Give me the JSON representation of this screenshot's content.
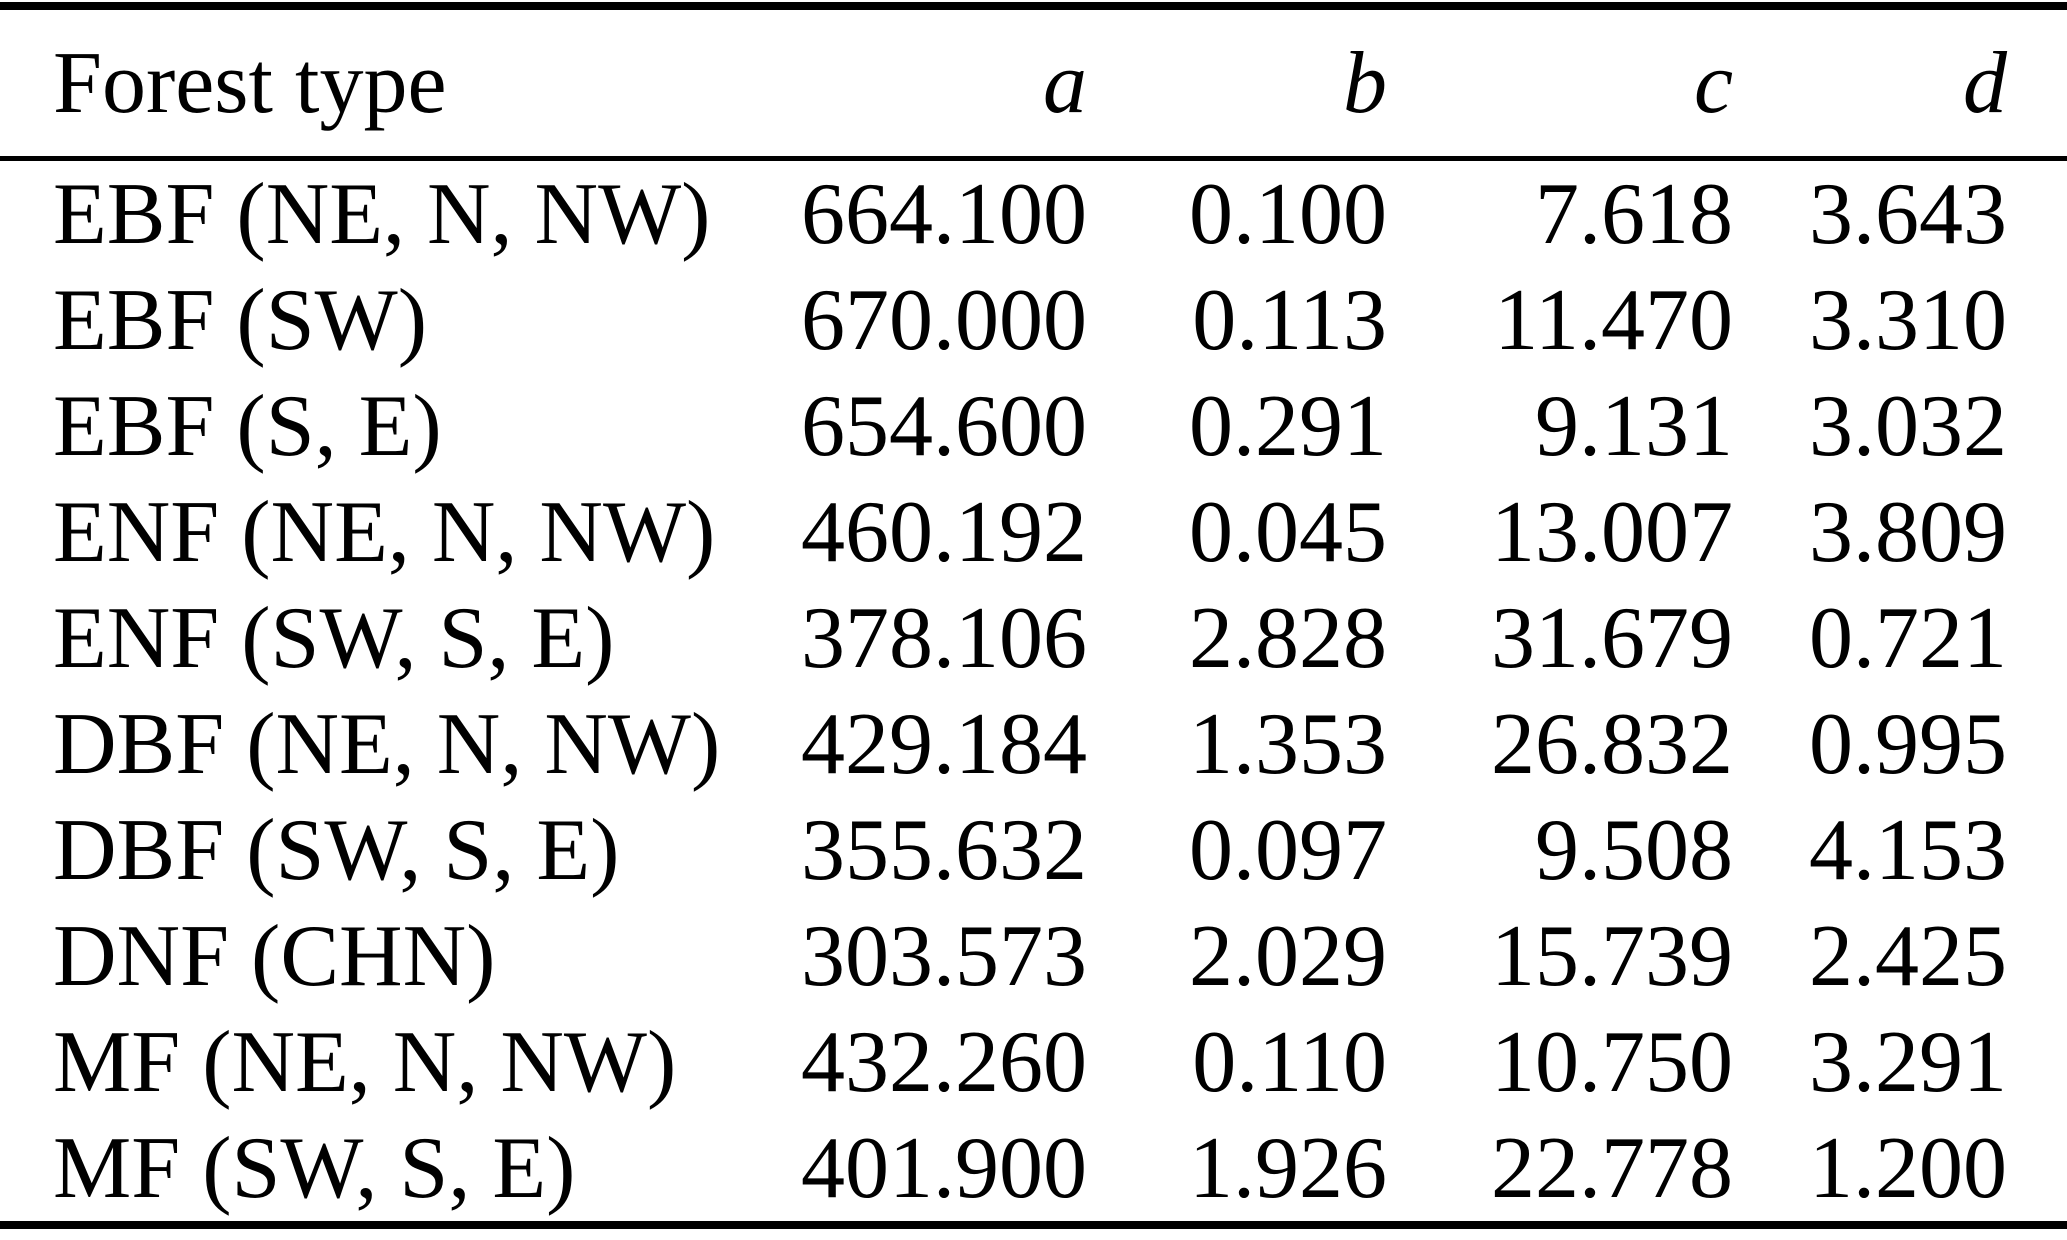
{
  "table": {
    "columns": {
      "forest_type": "Forest type",
      "a": "a",
      "b": "b",
      "c": "c",
      "d": "d"
    },
    "rows": [
      {
        "forest_type": "EBF (NE, N, NW)",
        "a": "664.100",
        "b": "0.100",
        "c": "7.618",
        "d": "3.643"
      },
      {
        "forest_type": "EBF (SW)",
        "a": "670.000",
        "b": "0.113",
        "c": "11.470",
        "d": "3.310"
      },
      {
        "forest_type": "EBF (S, E)",
        "a": "654.600",
        "b": "0.291",
        "c": "9.131",
        "d": "3.032"
      },
      {
        "forest_type": "ENF (NE, N, NW)",
        "a": "460.192",
        "b": "0.045",
        "c": "13.007",
        "d": "3.809"
      },
      {
        "forest_type": "ENF (SW, S, E)",
        "a": "378.106",
        "b": "2.828",
        "c": "31.679",
        "d": "0.721"
      },
      {
        "forest_type": "DBF (NE, N, NW)",
        "a": "429.184",
        "b": "1.353",
        "c": "26.832",
        "d": "0.995"
      },
      {
        "forest_type": "DBF (SW, S, E)",
        "a": "355.632",
        "b": "0.097",
        "c": "9.508",
        "d": "4.153"
      },
      {
        "forest_type": "DNF (CHN)",
        "a": "303.573",
        "b": "2.029",
        "c": "15.739",
        "d": "2.425"
      },
      {
        "forest_type": "MF (NE, N, NW)",
        "a": "432.260",
        "b": "0.110",
        "c": "10.750",
        "d": "3.291"
      },
      {
        "forest_type": "MF (SW, S, E)",
        "a": "401.900",
        "b": "1.926",
        "c": "22.778",
        "d": "1.200"
      }
    ],
    "colors": {
      "text": "#000000",
      "background": "#ffffff",
      "rule": "#000000"
    }
  }
}
